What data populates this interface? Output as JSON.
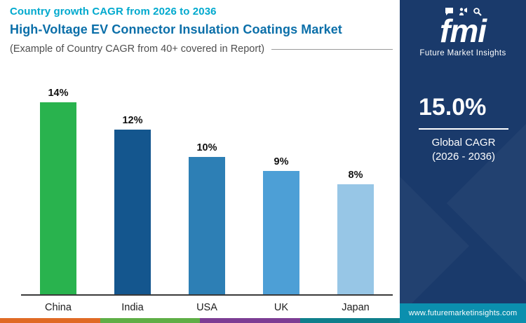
{
  "header": {
    "eyebrow": "Country growth CAGR from 2026 to 2036",
    "title": "High-Voltage EV Connector Insulation Coatings Market",
    "subtitle": "(Example of Country CAGR from 40+ covered in Report)"
  },
  "sidebar": {
    "logo_text": "fmi",
    "brand_name": "Future Market Insights",
    "cagr_value": "15.0%",
    "cagr_label": "Global CAGR",
    "cagr_period": "(2026 - 2036)",
    "website": "www.futuremarketinsights.com",
    "bg_color": "#1a3a6b",
    "url_bar_color": "#0b8fae"
  },
  "chart_data": {
    "type": "bar",
    "title": "Country growth CAGR from 2026 to 2036",
    "categories": [
      "China",
      "India",
      "USA",
      "UK",
      "Japan"
    ],
    "values": [
      14,
      12,
      10,
      9,
      8
    ],
    "labels": [
      "14%",
      "12%",
      "10%",
      "9%",
      "8%"
    ],
    "colors": [
      "#29b34e",
      "#14568e",
      "#2d7fb5",
      "#4d9fd6",
      "#97c6e6"
    ],
    "unit": "%",
    "ylim": [
      0,
      15
    ],
    "grid": false,
    "legend": false,
    "xlabel": "",
    "ylabel": ""
  },
  "footer_strip_colors": [
    "#e06a25",
    "#5fae46",
    "#7c3d94",
    "#0f7f8c"
  ]
}
